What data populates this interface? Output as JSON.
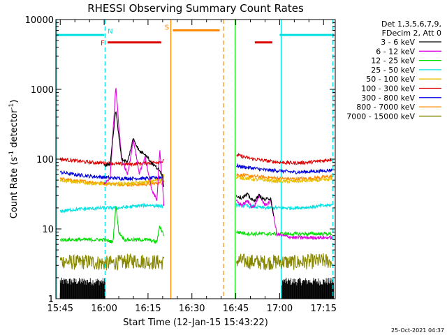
{
  "chart_data": {
    "type": "line",
    "title": "RHESSI Observing Summary Count Rates",
    "xlabel": "Start Time (12-Jan-15 15:43:22)",
    "ylabel_main": "Count Rate (s",
    "ylabel_sup1": "-1",
    "ylabel_mid": " detector",
    "ylabel_sup2": "-1",
    "ylabel_end": ")",
    "x_range_min": [
      -1.5,
      94
    ],
    "y_range": [
      1,
      10000
    ],
    "y_scale": "log",
    "xticks": [
      {
        "label": "15:45",
        "min": 0
      },
      {
        "label": "16:00",
        "min": 15
      },
      {
        "label": "16:15",
        "min": 30
      },
      {
        "label": "16:30",
        "min": 45
      },
      {
        "label": "16:45",
        "min": 60
      },
      {
        "label": "17:00",
        "min": 75
      },
      {
        "label": "17:15",
        "min": 90
      }
    ],
    "yticks": [
      {
        "label": "1",
        "v": 1
      },
      {
        "label": "10",
        "v": 10
      },
      {
        "label": "100",
        "v": 100
      },
      {
        "label": "1000",
        "v": 1000
      },
      {
        "label": "10000",
        "v": 10000
      }
    ],
    "legend_header": [
      "Det 1,3,5,6,7,9,",
      "FDecim 2, Att 0"
    ],
    "legend_position": "right",
    "timestamp": "25-Oct-2021 04:37",
    "series": [
      {
        "name": "3 - 6 keV",
        "color": "#000000",
        "segments": [
          {
            "x": [
              15,
              17,
              19,
              21,
              23,
              25,
              27,
              29,
              31,
              33,
              35,
              35.5
            ],
            "y": [
              80,
              85,
              500,
              100,
              90,
              200,
              130,
              120,
              90,
              75,
              60,
              35
            ]
          },
          {
            "x": [
              60.2,
              62,
              64,
              66,
              68,
              70,
              72,
              73
            ],
            "y": [
              30,
              28,
              31,
              25,
              30,
              26,
              28,
              14
            ]
          }
        ]
      },
      {
        "name": "6 - 12 keV",
        "color": "#e000e0",
        "segments": [
          {
            "x": [
              15,
              17,
              19,
              20,
              21,
              23,
              25,
              27,
              29,
              31,
              33,
              34,
              35,
              35.5
            ],
            "y": [
              45,
              50,
              1100,
              300,
              100,
              60,
              190,
              60,
              110,
              40,
              25,
              140,
              40,
              18
            ]
          },
          {
            "x": [
              60.2,
              62,
              64,
              66,
              68,
              70,
              72,
              73,
              74,
              76,
              80,
              85,
              90,
              93
            ],
            "y": [
              25,
              22,
              25,
              20,
              30,
              22,
              25,
              15,
              8.5,
              8,
              7.5,
              7.5,
              7.5,
              7.5
            ]
          }
        ]
      },
      {
        "name": "12 - 25 keV",
        "color": "#00dd00",
        "segments": [
          {
            "x": [
              0,
              5,
              10,
              15,
              18,
              19,
              20,
              22,
              25,
              30,
              33,
              34,
              35.5
            ],
            "y": [
              7,
              7,
              7,
              7,
              6.5,
              22,
              9,
              7,
              7,
              7,
              6.5,
              11,
              8
            ]
          },
          {
            "x": [
              60.2,
              65,
              70,
              75,
              80,
              85,
              90,
              93
            ],
            "y": [
              9,
              8.5,
              8.5,
              8.5,
              8.5,
              8.5,
              8.5,
              8.5
            ]
          }
        ]
      },
      {
        "name": "25 - 50 keV",
        "color": "#00e0e0",
        "segments": [
          {
            "x": [
              0,
              5,
              10,
              15,
              20,
              25,
              30,
              35.5
            ],
            "y": [
              18,
              19,
              19.5,
              20,
              20,
              21,
              22,
              21
            ]
          },
          {
            "x": [
              60.2,
              65,
              70,
              75,
              80,
              85,
              90,
              93
            ],
            "y": [
              22,
              21,
              20,
              20,
              20,
              20.5,
              21.5,
              22
            ]
          }
        ]
      },
      {
        "name": "50 - 100 keV",
        "color": "#e8c000",
        "segments": [
          {
            "x": [
              0,
              5,
              10,
              15,
              20,
              25,
              30,
              35,
              35.5
            ],
            "y": [
              50,
              47,
              45,
              44,
              44,
              45,
              47,
              52,
              60
            ]
          },
          {
            "x": [
              60.2,
              65,
              70,
              75,
              80,
              85,
              90,
              93
            ],
            "y": [
              55,
              52,
              50,
              48,
              48,
              49,
              50,
              52
            ]
          }
        ]
      },
      {
        "name": "100 - 300 keV",
        "color": "#dd0000",
        "segments": [
          {
            "x": [
              0,
              5,
              10,
              15,
              20,
              25,
              30,
              35,
              35.5
            ],
            "y": [
              100,
              95,
              90,
              88,
              85,
              85,
              88,
              92,
              95
            ]
          },
          {
            "x": [
              60.2,
              65,
              70,
              75,
              80,
              85,
              90,
              93
            ],
            "y": [
              115,
              102,
              95,
              90,
              88,
              90,
              95,
              100
            ]
          }
        ]
      },
      {
        "name": "300 - 800 keV",
        "color": "#0000dd",
        "segments": [
          {
            "x": [
              0,
              5,
              10,
              15,
              20,
              25,
              30,
              35,
              35.5
            ],
            "y": [
              65,
              60,
              57,
              55,
              53,
              53,
              53,
              55,
              58
            ]
          },
          {
            "x": [
              60.2,
              65,
              70,
              75,
              80,
              85,
              90,
              93
            ],
            "y": [
              80,
              75,
              70,
              68,
              65,
              66,
              68,
              70
            ]
          }
        ]
      },
      {
        "name": "800 - 7000 keV",
        "color": "#ff8800",
        "segments": [
          {
            "x": [
              0,
              5,
              10,
              15,
              20,
              25,
              30,
              35,
              35.5
            ],
            "y": [
              52,
              49,
              47,
              45,
              44,
              43,
              44,
              46,
              50
            ]
          },
          {
            "x": [
              60.2,
              65,
              70,
              75,
              80,
              85,
              90,
              93
            ],
            "y": [
              60,
              57,
              55,
              53,
              52,
              53,
              55,
              57
            ]
          }
        ]
      },
      {
        "name": "7000 - 15000 keV",
        "color": "#888800",
        "segments": [
          {
            "x": [
              0,
              5,
              10,
              15,
              20,
              25,
              30,
              35.5
            ],
            "y": [
              3.5,
              3.3,
              3.4,
              3.2,
              3.3,
              3.5,
              3.4,
              3.3
            ]
          },
          {
            "x": [
              60.2,
              65,
              70,
              75,
              80,
              85,
              90,
              93
            ],
            "y": [
              3.5,
              3.4,
              3.3,
              3.4,
              3.3,
              3.4,
              3.5,
              3.4
            ]
          }
        ]
      }
    ],
    "floor_noise": {
      "color": "#000000",
      "segments": [
        [
          0,
          15.3
        ],
        [
          75.8,
          93.5
        ]
      ],
      "low": 1,
      "high": 2
    },
    "state_bars": [
      {
        "label": "N",
        "label_color": "#00e0e0",
        "color": "#00e0e0",
        "y": 6000,
        "segments": [
          [
            -1.5,
            15
          ],
          [
            75,
            93.5
          ]
        ]
      },
      {
        "label": "F",
        "label_color": "#dd0000",
        "color": "#dd0000",
        "y": 4700,
        "segments": [
          [
            16.2,
            34.5
          ],
          [
            66.5,
            72.5
          ]
        ]
      },
      {
        "label": "S",
        "label_color": "#ff8800",
        "color": "#ff8800",
        "y": 7000,
        "segments": [
          [
            38.5,
            54.5
          ]
        ]
      }
    ],
    "vlines": [
      {
        "x": -1.2,
        "color": "#00e0e0",
        "dash": false
      },
      {
        "x": 15.3,
        "color": "#00e0e0",
        "dash": true
      },
      {
        "x": 37.8,
        "color": "#ff8800",
        "dash": false
      },
      {
        "x": 55.8,
        "color": "#ff8800",
        "dash": true
      },
      {
        "x": 59.8,
        "color": "#00dd00",
        "dash": false
      },
      {
        "x": 75.5,
        "color": "#00e0e0",
        "dash": false
      },
      {
        "x": 93.2,
        "color": "#00e0e0",
        "dash": true
      }
    ]
  }
}
